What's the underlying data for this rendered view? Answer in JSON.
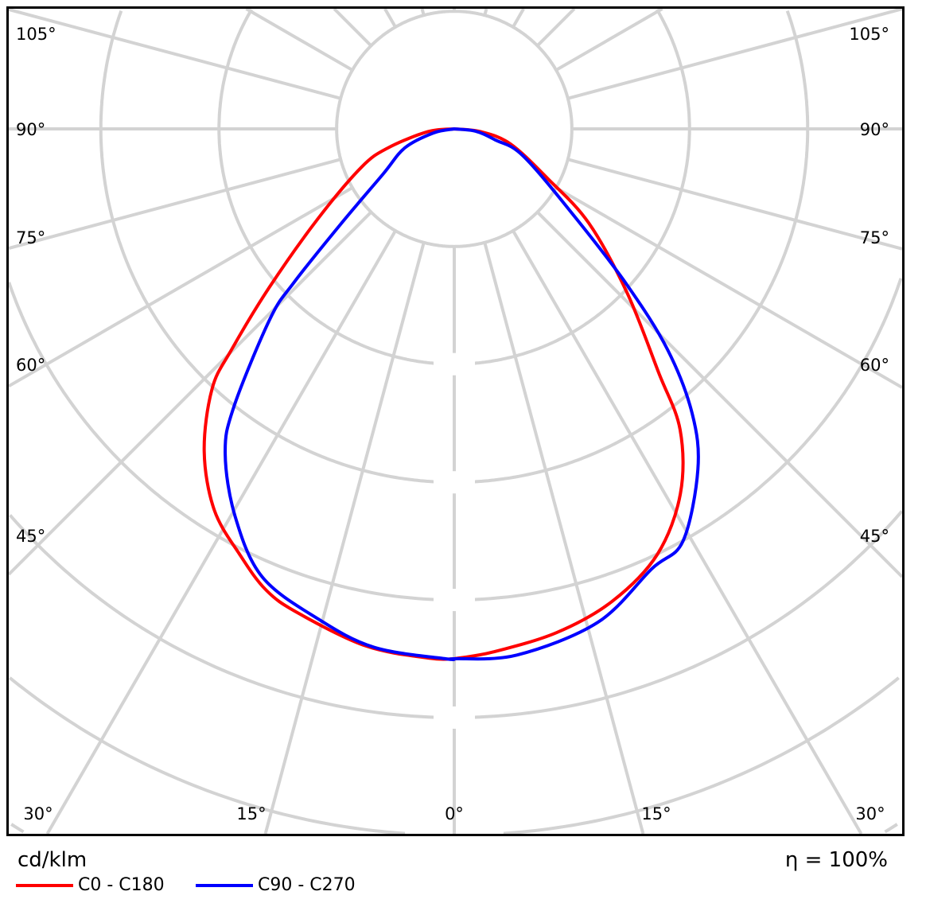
{
  "chart_data": {
    "type": "polar",
    "unit_label": "cd/klm",
    "efficiency_label": "η = 100%",
    "intensity_scale": "relative (peak = 1.00); ring values not printed",
    "rings": [
      0.222,
      0.444,
      0.667,
      0.889,
      1.111,
      1.333,
      1.556,
      1.778
    ],
    "spoke_step_deg": 15,
    "grid": true,
    "legend_placement": "bottom-left",
    "angle_labels": [
      {
        "text": "105°",
        "angle": 105,
        "side": "both"
      },
      {
        "text": "90°",
        "angle": 90,
        "side": "both"
      },
      {
        "text": "75°",
        "angle": 75,
        "side": "both"
      },
      {
        "text": "60°",
        "angle": 60,
        "side": "both"
      },
      {
        "text": "45°",
        "angle": 45,
        "side": "both"
      },
      {
        "text": "30°",
        "angle": 30,
        "side": "bottom"
      },
      {
        "text": "15°",
        "angle": 15,
        "side": "bottom"
      },
      {
        "text": "0°",
        "angle": 0,
        "side": "bottom"
      }
    ],
    "series": [
      {
        "name": "C0 - C180",
        "color": "#ff0000",
        "left": [
          [
            0,
            1.0
          ],
          [
            2.7,
            1.0
          ],
          [
            9.7,
            0.99
          ],
          [
            17.9,
            0.96
          ],
          [
            22.2,
            0.94
          ],
          [
            26.7,
            0.9
          ],
          [
            32.2,
            0.85
          ],
          [
            37.8,
            0.77
          ],
          [
            43,
            0.67
          ],
          [
            45.3,
            0.59
          ],
          [
            49.4,
            0.46
          ],
          [
            56.5,
            0.31
          ],
          [
            67.5,
            0.19
          ],
          [
            74,
            0.13
          ],
          [
            84,
            0.05
          ],
          [
            90,
            0.0
          ]
        ],
        "right": [
          [
            0,
            1.0
          ],
          [
            4.2,
            0.99
          ],
          [
            11.5,
            0.97
          ],
          [
            18.5,
            0.94
          ],
          [
            25.5,
            0.89
          ],
          [
            31.8,
            0.81
          ],
          [
            36.9,
            0.71
          ],
          [
            40,
            0.6
          ],
          [
            46.5,
            0.45
          ],
          [
            55,
            0.31
          ],
          [
            62,
            0.2
          ],
          [
            75,
            0.11
          ],
          [
            84,
            0.05
          ],
          [
            90,
            0.0
          ]
        ]
      },
      {
        "name": "C90 - C270",
        "color": "#0000ff",
        "left": [
          [
            0,
            1.0
          ],
          [
            1,
            1.0
          ],
          [
            8.8,
            0.99
          ],
          [
            15.5,
            0.96
          ],
          [
            23.2,
            0.92
          ],
          [
            29.5,
            0.84
          ],
          [
            35.2,
            0.75
          ],
          [
            38.4,
            0.67
          ],
          [
            44.1,
            0.5
          ],
          [
            46.2,
            0.42
          ],
          [
            50,
            0.28
          ],
          [
            57.5,
            0.16
          ],
          [
            69,
            0.1
          ],
          [
            79,
            0.04
          ],
          [
            90,
            0.0
          ]
        ],
        "right": [
          [
            0,
            1.0
          ],
          [
            6.8,
            1.0
          ],
          [
            16.2,
            0.97
          ],
          [
            24.2,
            0.91
          ],
          [
            29,
            0.89
          ],
          [
            35.6,
            0.79
          ],
          [
            39.9,
            0.7
          ],
          [
            44,
            0.58
          ],
          [
            47.9,
            0.44
          ],
          [
            54,
            0.28
          ],
          [
            68.5,
            0.14
          ],
          [
            75,
            0.08
          ],
          [
            84,
            0.04
          ],
          [
            90,
            0.0
          ]
        ]
      }
    ]
  },
  "footer": {
    "unit": "cd/klm",
    "efficiency": "η = 100%",
    "legend": [
      {
        "label": "C0 - C180",
        "color": "#ff0000"
      },
      {
        "label": "C90 - C270",
        "color": "#0000ff"
      }
    ]
  }
}
